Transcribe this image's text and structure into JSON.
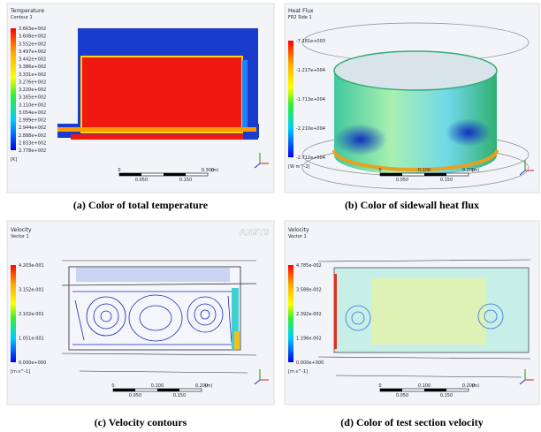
{
  "panels": [
    {
      "caption": "(a) Color of total temperature",
      "legend": {
        "title": "Temperature",
        "subtitle": "Contour 1",
        "labels": [
          "3.663e+002",
          "3.608e+002",
          "3.552e+002",
          "3.497e+002",
          "3.442e+002",
          "3.386e+002",
          "3.331e+002",
          "3.276e+002",
          "3.220e+002",
          "3.165e+002",
          "3.110e+002",
          "3.054e+002",
          "2.999e+002",
          "2.944e+002",
          "2.888e+002",
          "2.833e+002",
          "2.778e+002"
        ],
        "unit": "[K]"
      },
      "scale": {
        "top": [
          "0",
          "0.300",
          "(m)"
        ],
        "bottom": [
          "0.050",
          "0.150"
        ]
      }
    },
    {
      "caption": "(b) Color of sidewall heat flux",
      "legend": {
        "title": "Heat Flux",
        "subtitle": "FR2 Side 1",
        "labels": [
          "-7.181e+003",
          "-1.217e+004",
          "-1.713e+004",
          "-2.210e+004",
          "-2.712e+004"
        ],
        "unit": "[W m^-2]"
      },
      "scale": {
        "top": [
          "0",
          "0.100",
          "0.200",
          "(m)"
        ],
        "bottom": [
          "0.050",
          "0.150"
        ]
      }
    },
    {
      "caption": "(c) Velocity contours",
      "brand": "ANSYS",
      "legend": {
        "title": "Velocity",
        "subtitle": "Vector 1",
        "labels": [
          "4.203e-001",
          "3.152e-001",
          "2.102e-001",
          "1.051e-001",
          "0.000e+000"
        ],
        "unit": "[m s^-1]"
      },
      "scale": {
        "top": [
          "0",
          "0.100",
          "0.200",
          "(m)"
        ],
        "bottom": [
          "0.050",
          "0.150"
        ]
      }
    },
    {
      "caption": "(d) Color of test section velocity",
      "legend": {
        "title": "Velocity",
        "subtitle": "Vector 1",
        "labels": [
          "4.785e-002",
          "3.588e-002",
          "2.392e-002",
          "1.196e-002",
          "0.000e+000"
        ],
        "unit": "[m s^-1]"
      },
      "scale": {
        "top": [
          "0",
          "0.100",
          "0.200",
          "(m)"
        ],
        "bottom": [
          "0.050",
          "0.150"
        ]
      }
    }
  ]
}
